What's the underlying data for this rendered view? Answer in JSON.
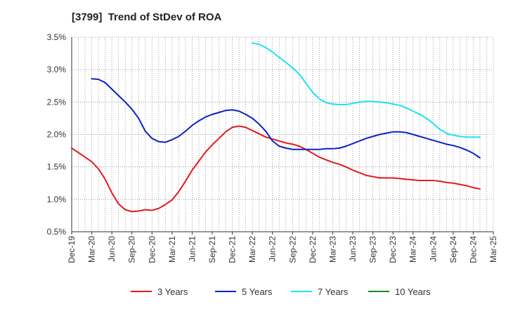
{
  "chart_data": {
    "type": "line",
    "title": "[3799]  Trend of StDev of ROA",
    "xlabel": "",
    "ylabel": "",
    "ylim": [
      0.5,
      3.5
    ],
    "yticks": [
      "0.5%",
      "1.0%",
      "1.5%",
      "2.0%",
      "2.5%",
      "3.0%",
      "3.5%"
    ],
    "yvalues": [
      0.5,
      1.0,
      1.5,
      2.0,
      2.5,
      3.0,
      3.5
    ],
    "xticks": [
      "Dec-19",
      "Mar-20",
      "Jun-20",
      "Sep-20",
      "Dec-20",
      "Mar-21",
      "Jun-21",
      "Sep-21",
      "Dec-21",
      "Mar-22",
      "Jun-22",
      "Sep-22",
      "Dec-22",
      "Mar-23",
      "Jun-23",
      "Sep-23",
      "Dec-23",
      "Mar-24",
      "Jun-24",
      "Sep-24",
      "Dec-24",
      "Mar-25"
    ],
    "grid": true,
    "legend_position": "bottom",
    "series": [
      {
        "name": "3 Years",
        "color": "#e31a1c",
        "points": [
          [
            "Dec-19",
            1.79
          ],
          [
            "Jan-20",
            1.72
          ],
          [
            "Feb-20",
            1.65
          ],
          [
            "Mar-20",
            1.58
          ],
          [
            "Apr-20",
            1.47
          ],
          [
            "May-20",
            1.31
          ],
          [
            "Jun-20",
            1.1
          ],
          [
            "Jul-20",
            0.93
          ],
          [
            "Aug-20",
            0.84
          ],
          [
            "Sep-20",
            0.81
          ],
          [
            "Oct-20",
            0.82
          ],
          [
            "Nov-20",
            0.84
          ],
          [
            "Dec-20",
            0.83
          ],
          [
            "Jan-21",
            0.86
          ],
          [
            "Feb-21",
            0.92
          ],
          [
            "Mar-21",
            0.99
          ],
          [
            "Apr-21",
            1.12
          ],
          [
            "May-21",
            1.28
          ],
          [
            "Jun-21",
            1.45
          ],
          [
            "Jul-21",
            1.59
          ],
          [
            "Aug-21",
            1.73
          ],
          [
            "Sep-21",
            1.84
          ],
          [
            "Oct-21",
            1.94
          ],
          [
            "Nov-21",
            2.04
          ],
          [
            "Dec-21",
            2.11
          ],
          [
            "Jan-22",
            2.13
          ],
          [
            "Feb-22",
            2.11
          ],
          [
            "Mar-22",
            2.06
          ],
          [
            "Apr-22",
            2.01
          ],
          [
            "May-22",
            1.96
          ],
          [
            "Jun-22",
            1.93
          ],
          [
            "Jul-22",
            1.9
          ],
          [
            "Aug-22",
            1.87
          ],
          [
            "Sep-22",
            1.85
          ],
          [
            "Oct-22",
            1.82
          ],
          [
            "Nov-22",
            1.77
          ],
          [
            "Dec-22",
            1.71
          ],
          [
            "Jan-23",
            1.65
          ],
          [
            "Feb-23",
            1.61
          ],
          [
            "Mar-23",
            1.57
          ],
          [
            "Apr-23",
            1.54
          ],
          [
            "May-23",
            1.5
          ],
          [
            "Jun-23",
            1.45
          ],
          [
            "Jul-23",
            1.41
          ],
          [
            "Aug-23",
            1.37
          ],
          [
            "Sep-23",
            1.35
          ],
          [
            "Oct-23",
            1.33
          ],
          [
            "Nov-23",
            1.33
          ],
          [
            "Dec-23",
            1.33
          ],
          [
            "Jan-24",
            1.32
          ],
          [
            "Feb-24",
            1.31
          ],
          [
            "Mar-24",
            1.3
          ],
          [
            "Apr-24",
            1.29
          ],
          [
            "May-24",
            1.29
          ],
          [
            "Jun-24",
            1.29
          ],
          [
            "Jul-24",
            1.28
          ],
          [
            "Aug-24",
            1.26
          ],
          [
            "Sep-24",
            1.25
          ],
          [
            "Oct-24",
            1.23
          ],
          [
            "Nov-24",
            1.21
          ],
          [
            "Dec-24",
            1.18
          ],
          [
            "Jan-25",
            1.16
          ]
        ]
      },
      {
        "name": "5 Years",
        "color": "#0a22c4",
        "points": [
          [
            "Mar-20",
            2.86
          ],
          [
            "Apr-20",
            2.85
          ],
          [
            "May-20",
            2.8
          ],
          [
            "Jun-20",
            2.7
          ],
          [
            "Jul-20",
            2.6
          ],
          [
            "Aug-20",
            2.5
          ],
          [
            "Sep-20",
            2.39
          ],
          [
            "Oct-20",
            2.25
          ],
          [
            "Nov-20",
            2.05
          ],
          [
            "Dec-20",
            1.94
          ],
          [
            "Jan-21",
            1.89
          ],
          [
            "Feb-21",
            1.88
          ],
          [
            "Mar-21",
            1.92
          ],
          [
            "Apr-21",
            1.97
          ],
          [
            "May-21",
            2.05
          ],
          [
            "Jun-21",
            2.14
          ],
          [
            "Jul-21",
            2.21
          ],
          [
            "Aug-21",
            2.27
          ],
          [
            "Sep-21",
            2.31
          ],
          [
            "Oct-21",
            2.34
          ],
          [
            "Nov-21",
            2.37
          ],
          [
            "Dec-21",
            2.38
          ],
          [
            "Jan-22",
            2.36
          ],
          [
            "Feb-22",
            2.31
          ],
          [
            "Mar-22",
            2.25
          ],
          [
            "Apr-22",
            2.16
          ],
          [
            "May-22",
            2.05
          ],
          [
            "Jun-22",
            1.9
          ],
          [
            "Jul-22",
            1.82
          ],
          [
            "Aug-22",
            1.79
          ],
          [
            "Sep-22",
            1.77
          ],
          [
            "Oct-22",
            1.77
          ],
          [
            "Nov-22",
            1.77
          ],
          [
            "Dec-22",
            1.77
          ],
          [
            "Jan-23",
            1.77
          ],
          [
            "Feb-23",
            1.78
          ],
          [
            "Mar-23",
            1.78
          ],
          [
            "Apr-23",
            1.79
          ],
          [
            "May-23",
            1.82
          ],
          [
            "Jun-23",
            1.86
          ],
          [
            "Jul-23",
            1.9
          ],
          [
            "Aug-23",
            1.94
          ],
          [
            "Sep-23",
            1.97
          ],
          [
            "Oct-23",
            2.0
          ],
          [
            "Nov-23",
            2.02
          ],
          [
            "Dec-23",
            2.04
          ],
          [
            "Jan-24",
            2.04
          ],
          [
            "Feb-24",
            2.03
          ],
          [
            "Mar-24",
            2.0
          ],
          [
            "Apr-24",
            1.97
          ],
          [
            "May-24",
            1.94
          ],
          [
            "Jun-24",
            1.91
          ],
          [
            "Jul-24",
            1.88
          ],
          [
            "Aug-24",
            1.85
          ],
          [
            "Sep-24",
            1.83
          ],
          [
            "Oct-24",
            1.8
          ],
          [
            "Nov-24",
            1.76
          ],
          [
            "Dec-24",
            1.71
          ],
          [
            "Jan-25",
            1.64
          ]
        ]
      },
      {
        "name": "7 Years",
        "color": "#19e5f0",
        "points": [
          [
            "Mar-22",
            3.41
          ],
          [
            "Apr-22",
            3.39
          ],
          [
            "May-22",
            3.34
          ],
          [
            "Jun-22",
            3.27
          ],
          [
            "Jul-22",
            3.19
          ],
          [
            "Aug-22",
            3.11
          ],
          [
            "Sep-22",
            3.03
          ],
          [
            "Oct-22",
            2.93
          ],
          [
            "Nov-22",
            2.79
          ],
          [
            "Dec-22",
            2.65
          ],
          [
            "Jan-23",
            2.55
          ],
          [
            "Feb-23",
            2.49
          ],
          [
            "Mar-23",
            2.47
          ],
          [
            "Apr-23",
            2.46
          ],
          [
            "May-23",
            2.46
          ],
          [
            "Jun-23",
            2.48
          ],
          [
            "Jul-23",
            2.5
          ],
          [
            "Aug-23",
            2.51
          ],
          [
            "Sep-23",
            2.51
          ],
          [
            "Oct-23",
            2.5
          ],
          [
            "Nov-23",
            2.49
          ],
          [
            "Dec-23",
            2.47
          ],
          [
            "Jan-24",
            2.45
          ],
          [
            "Feb-24",
            2.41
          ],
          [
            "Mar-24",
            2.36
          ],
          [
            "Apr-24",
            2.31
          ],
          [
            "May-24",
            2.25
          ],
          [
            "Jun-24",
            2.17
          ],
          [
            "Jul-24",
            2.08
          ],
          [
            "Aug-24",
            2.02
          ],
          [
            "Sep-24",
            1.99
          ],
          [
            "Oct-24",
            1.97
          ],
          [
            "Nov-24",
            1.96
          ],
          [
            "Dec-24",
            1.96
          ],
          [
            "Jan-25",
            1.96
          ]
        ]
      },
      {
        "name": "10 Years",
        "color": "#1a8a1a",
        "points": []
      }
    ]
  }
}
